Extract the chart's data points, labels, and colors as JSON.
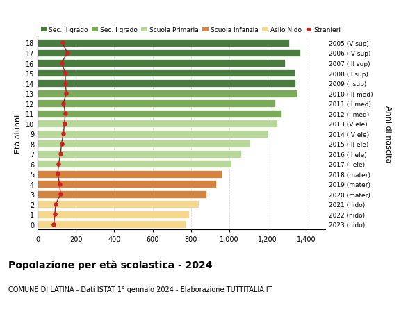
{
  "ages": [
    18,
    17,
    16,
    15,
    14,
    13,
    12,
    11,
    10,
    9,
    8,
    7,
    6,
    5,
    4,
    3,
    2,
    1,
    0
  ],
  "right_labels": [
    "2005 (V sup)",
    "2006 (IV sup)",
    "2007 (III sup)",
    "2008 (II sup)",
    "2009 (I sup)",
    "2010 (III med)",
    "2011 (II med)",
    "2012 (I med)",
    "2013 (V ele)",
    "2014 (IV ele)",
    "2015 (III ele)",
    "2016 (II ele)",
    "2017 (I ele)",
    "2018 (mater)",
    "2019 (mater)",
    "2020 (mater)",
    "2021 (nido)",
    "2022 (nido)",
    "2023 (nido)"
  ],
  "bar_values": [
    1310,
    1370,
    1290,
    1340,
    1345,
    1350,
    1240,
    1270,
    1250,
    1200,
    1110,
    1060,
    1010,
    960,
    930,
    880,
    840,
    790,
    770
  ],
  "bar_colors": [
    "#4a7c3f",
    "#4a7c3f",
    "#4a7c3f",
    "#4a7c3f",
    "#4a7c3f",
    "#7aaa5a",
    "#7aaa5a",
    "#7aaa5a",
    "#b8d89a",
    "#b8d89a",
    "#b8d89a",
    "#b8d89a",
    "#b8d89a",
    "#d4843e",
    "#d4843e",
    "#d4843e",
    "#f5d78e",
    "#f5d78e",
    "#f5d78e"
  ],
  "stranieri_values": [
    130,
    155,
    125,
    145,
    145,
    150,
    135,
    145,
    140,
    135,
    125,
    120,
    110,
    105,
    115,
    120,
    95,
    90,
    85
  ],
  "xticks": [
    0,
    200,
    400,
    600,
    800,
    1000,
    1200,
    1400
  ],
  "xtick_labels": [
    "0",
    "200",
    "400",
    "600",
    "800",
    "1,000",
    "1,200",
    "1,400"
  ],
  "ylabel": "Età alunni",
  "right_ylabel": "Anni di nascita",
  "title": "Popolazione per età scolastica - 2024",
  "subtitle": "COMUNE DI LATINA - Dati ISTAT 1° gennaio 2024 - Elaborazione TUTTITALIA.IT",
  "legend_labels": [
    "Sec. II grado",
    "Sec. I grado",
    "Scuola Primaria",
    "Scuola Infanzia",
    "Asilo Nido",
    "Stranieri"
  ],
  "legend_colors": [
    "#4a7c3f",
    "#7aaa5a",
    "#b8d89a",
    "#d4843e",
    "#f5d78e",
    "#cc2222"
  ],
  "bar_height": 0.75,
  "background_color": "#ffffff",
  "grid_color": "#cccccc",
  "stranieri_color": "#cc2222",
  "stranieri_line_color": "#882222"
}
